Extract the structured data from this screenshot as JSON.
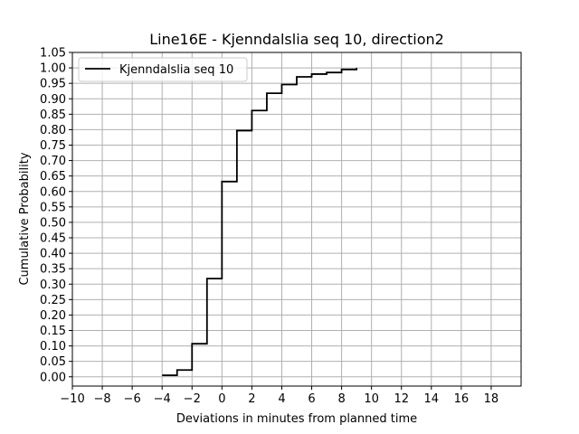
{
  "chart_data": {
    "type": "line",
    "step": "post",
    "title": "Line16E - Kjenndalslia seq 10, direction2",
    "xlabel": "Deviations in minutes from planned time",
    "ylabel": "Cumulative Probability",
    "xlim": [
      -10,
      20
    ],
    "ylim": [
      -0.03,
      1.05
    ],
    "grid": true,
    "legend_position": "top-left",
    "xticks": [
      -10,
      -8,
      -6,
      -4,
      -2,
      0,
      2,
      4,
      6,
      8,
      10,
      12,
      14,
      16,
      18
    ],
    "xtick_labels": [
      "−10",
      "−8",
      "−6",
      "−4",
      "−2",
      "0",
      "2",
      "4",
      "6",
      "8",
      "10",
      "12",
      "14",
      "16",
      "18"
    ],
    "yticks": [
      0.0,
      0.05,
      0.1,
      0.15,
      0.2,
      0.25,
      0.3,
      0.35,
      0.4,
      0.45,
      0.5,
      0.55,
      0.6,
      0.65,
      0.7,
      0.75,
      0.8,
      0.85,
      0.9,
      0.95,
      1.0,
      1.05
    ],
    "ytick_labels": [
      "0.00",
      "0.05",
      "0.10",
      "0.15",
      "0.20",
      "0.25",
      "0.30",
      "0.35",
      "0.40",
      "0.45",
      "0.50",
      "0.55",
      "0.60",
      "0.65",
      "0.70",
      "0.75",
      "0.80",
      "0.85",
      "0.90",
      "0.95",
      "1.00",
      "1.05"
    ],
    "series": [
      {
        "name": "Kjenndalslia seq 10",
        "color": "#000000",
        "x": [
          -4,
          -3,
          -2,
          -1,
          0,
          1,
          2,
          3,
          4,
          5,
          6,
          7,
          8,
          9
        ],
        "y": [
          0.005,
          0.022,
          0.107,
          0.318,
          0.632,
          0.797,
          0.862,
          0.918,
          0.946,
          0.971,
          0.98,
          0.985,
          0.995,
          1.0
        ]
      }
    ]
  }
}
